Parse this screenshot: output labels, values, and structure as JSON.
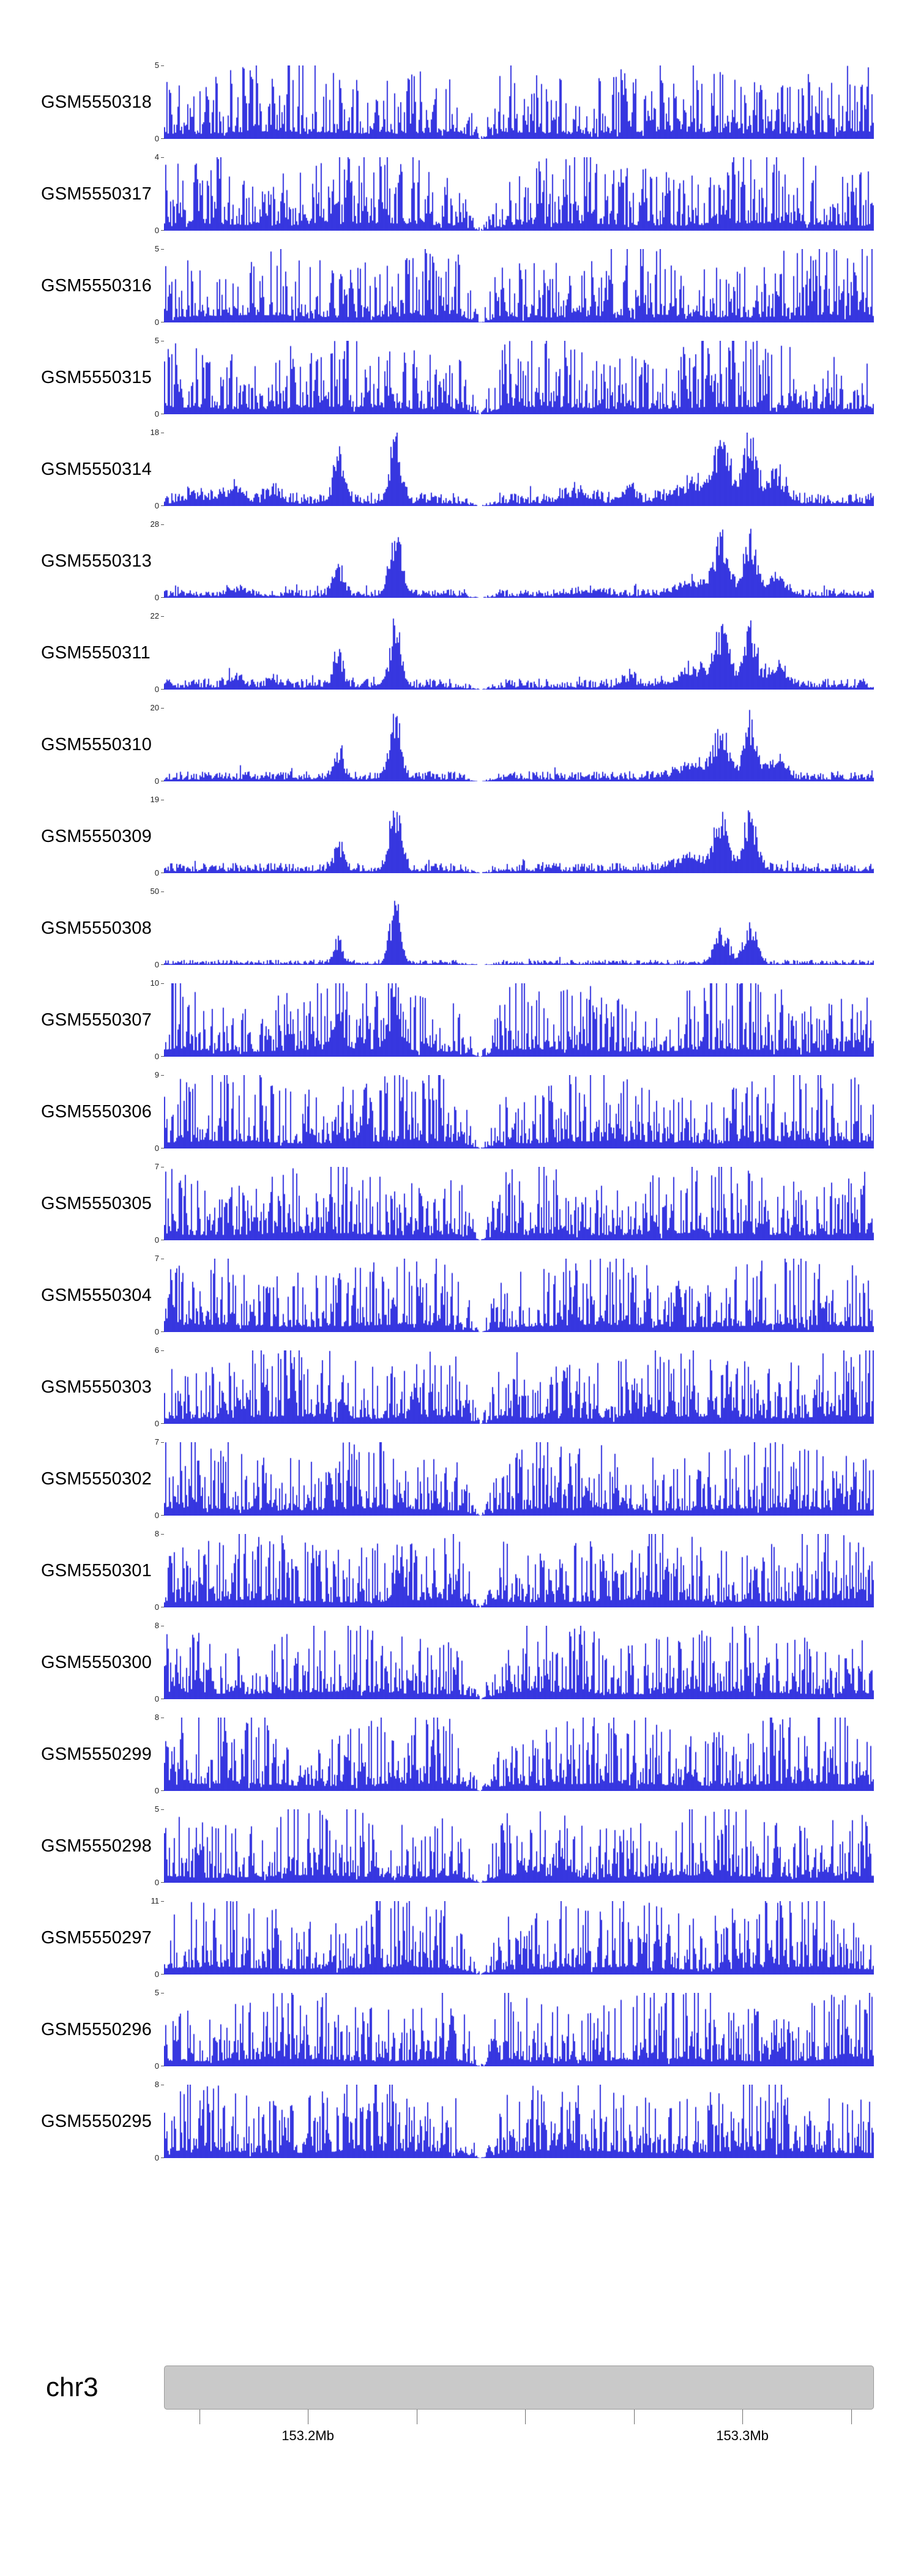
{
  "colors": {
    "signal": "#0505d8",
    "ideogram_fill": "#c9c9c9",
    "ideogram_border": "#9b9b9b",
    "axis_tick": "#6f6f6f",
    "text": "#000000"
  },
  "chart_data": {
    "type": "area",
    "title": "",
    "subtitle": "",
    "legend": [],
    "y_axis_zero_label": "0",
    "x_axis": {
      "chromosome": "chr3",
      "unit": "Mb",
      "labeled_positions": [
        "153.2Mb",
        "153.3Mb"
      ]
    },
    "ideogram": {
      "chromosome": "chr3"
    },
    "axis": {
      "ticks": [
        {
          "pos": 0.05,
          "label": ""
        },
        {
          "pos": 0.203,
          "label": "153.2Mb"
        },
        {
          "pos": 0.356,
          "label": ""
        },
        {
          "pos": 0.509,
          "label": ""
        },
        {
          "pos": 0.662,
          "label": ""
        },
        {
          "pos": 0.815,
          "label": "153.3Mb"
        },
        {
          "pos": 0.968,
          "label": ""
        }
      ]
    },
    "gap_region": {
      "center": 0.445,
      "halfwidth": 0.032
    },
    "tracks": [
      {
        "label": "GSM5550318",
        "ymax": 5,
        "style": "dense",
        "seed": 11,
        "bg": 0,
        "peaks": []
      },
      {
        "label": "GSM5550317",
        "ymax": 4,
        "style": "dense",
        "seed": 22,
        "bg": 0,
        "peaks": []
      },
      {
        "label": "GSM5550316",
        "ymax": 5,
        "style": "dense",
        "seed": 33,
        "bg": 0,
        "peaks": []
      },
      {
        "label": "GSM5550315",
        "ymax": 5,
        "style": "dense",
        "seed": 44,
        "bg": 0,
        "peaks": []
      },
      {
        "label": "GSM5550314",
        "ymax": 18,
        "style": "peaks",
        "seed": 55,
        "bg": 0.16,
        "peaks": [
          [
            0.05,
            0.12,
            0.02
          ],
          [
            0.1,
            0.28,
            0.01
          ],
          [
            0.155,
            0.22,
            0.009
          ],
          [
            0.245,
            0.72,
            0.007
          ],
          [
            0.325,
            1.0,
            0.008
          ],
          [
            0.58,
            0.15,
            0.02
          ],
          [
            0.655,
            0.18,
            0.01
          ],
          [
            0.75,
            0.3,
            0.03
          ],
          [
            0.785,
            0.85,
            0.01
          ],
          [
            0.825,
            1.0,
            0.009
          ],
          [
            0.862,
            0.5,
            0.012
          ]
        ]
      },
      {
        "label": "GSM5550313",
        "ymax": 28,
        "style": "peaks",
        "seed": 66,
        "bg": 0.1,
        "peaks": [
          [
            0.1,
            0.12,
            0.01
          ],
          [
            0.245,
            0.5,
            0.007
          ],
          [
            0.325,
            1.0,
            0.008
          ],
          [
            0.6,
            0.08,
            0.02
          ],
          [
            0.75,
            0.22,
            0.028
          ],
          [
            0.785,
            0.8,
            0.01
          ],
          [
            0.825,
            0.95,
            0.009
          ],
          [
            0.862,
            0.35,
            0.012
          ]
        ]
      },
      {
        "label": "GSM5550311",
        "ymax": 22,
        "style": "peaks",
        "seed": 77,
        "bg": 0.13,
        "peaks": [
          [
            0.1,
            0.15,
            0.01
          ],
          [
            0.155,
            0.12,
            0.009
          ],
          [
            0.245,
            0.55,
            0.007
          ],
          [
            0.325,
            0.95,
            0.008
          ],
          [
            0.655,
            0.15,
            0.01
          ],
          [
            0.75,
            0.25,
            0.028
          ],
          [
            0.785,
            0.85,
            0.01
          ],
          [
            0.825,
            0.9,
            0.009
          ],
          [
            0.862,
            0.4,
            0.012
          ]
        ]
      },
      {
        "label": "GSM5550310",
        "ymax": 20,
        "style": "peaks",
        "seed": 88,
        "bg": 0.12,
        "peaks": [
          [
            0.245,
            0.5,
            0.007
          ],
          [
            0.325,
            1.0,
            0.008
          ],
          [
            0.75,
            0.2,
            0.028
          ],
          [
            0.785,
            0.7,
            0.01
          ],
          [
            0.825,
            0.85,
            0.009
          ],
          [
            0.862,
            0.35,
            0.012
          ]
        ]
      },
      {
        "label": "GSM5550309",
        "ymax": 19,
        "style": "peaks",
        "seed": 99,
        "bg": 0.12,
        "peaks": [
          [
            0.245,
            0.45,
            0.007
          ],
          [
            0.325,
            1.0,
            0.008
          ],
          [
            0.75,
            0.2,
            0.028
          ],
          [
            0.785,
            0.75,
            0.01
          ],
          [
            0.825,
            0.85,
            0.009
          ]
        ]
      },
      {
        "label": "GSM5550308",
        "ymax": 50,
        "style": "peaks",
        "seed": 110,
        "bg": 0.06,
        "peaks": [
          [
            0.245,
            0.4,
            0.006
          ],
          [
            0.325,
            1.0,
            0.007
          ],
          [
            0.785,
            0.5,
            0.01
          ],
          [
            0.825,
            0.6,
            0.009
          ]
        ]
      },
      {
        "label": "GSM5550307",
        "ymax": 10,
        "style": "dense",
        "seed": 121,
        "bg": 0,
        "peaks": [
          [
            0.245,
            0.45,
            0.008
          ],
          [
            0.325,
            0.75,
            0.009
          ]
        ]
      },
      {
        "label": "GSM5550306",
        "ymax": 9,
        "style": "dense",
        "seed": 132,
        "bg": 0,
        "peaks": []
      },
      {
        "label": "GSM5550305",
        "ymax": 7,
        "style": "dense",
        "seed": 143,
        "bg": 0,
        "peaks": []
      },
      {
        "label": "GSM5550304",
        "ymax": 7,
        "style": "dense",
        "seed": 154,
        "bg": 0,
        "peaks": []
      },
      {
        "label": "GSM5550303",
        "ymax": 6,
        "style": "dense",
        "seed": 165,
        "bg": 0,
        "peaks": []
      },
      {
        "label": "GSM5550302",
        "ymax": 7,
        "style": "dense",
        "seed": 176,
        "bg": 0,
        "peaks": []
      },
      {
        "label": "GSM5550301",
        "ymax": 8,
        "style": "dense",
        "seed": 187,
        "bg": 0,
        "peaks": [
          [
            0.33,
            0.45,
            0.007
          ]
        ]
      },
      {
        "label": "GSM5550300",
        "ymax": 8,
        "style": "dense",
        "seed": 198,
        "bg": 0,
        "peaks": []
      },
      {
        "label": "GSM5550299",
        "ymax": 8,
        "style": "dense",
        "seed": 209,
        "bg": 0,
        "peaks": []
      },
      {
        "label": "GSM5550298",
        "ymax": 5,
        "style": "dense",
        "seed": 220,
        "bg": 0,
        "peaks": []
      },
      {
        "label": "GSM5550297",
        "ymax": 11,
        "style": "dense",
        "seed": 231,
        "bg": 0,
        "peaks": []
      },
      {
        "label": "GSM5550296",
        "ymax": 5,
        "style": "dense",
        "seed": 242,
        "bg": 0,
        "peaks": []
      },
      {
        "label": "GSM5550295",
        "ymax": 8,
        "style": "dense",
        "seed": 253,
        "bg": 0,
        "peaks": []
      }
    ]
  }
}
